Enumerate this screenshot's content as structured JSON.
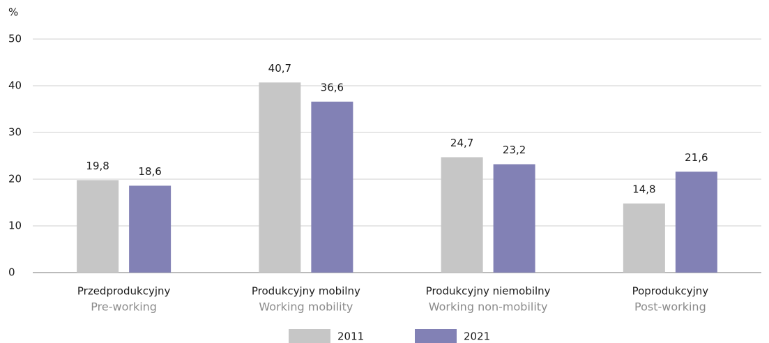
{
  "chart_data": {
    "type": "bar",
    "y_unit": "%",
    "categories": [
      "Przedprodukcyjny",
      "Produkcyjny mobilny",
      "Produkcyjny niemobilny",
      "Poprodukcyjny"
    ],
    "category_subtitles": [
      "Pre-working",
      "Working mobility",
      "Working non-mobility",
      "Post-working"
    ],
    "series": [
      {
        "name": "2011",
        "color": "#c6c6c6",
        "values": [
          19.8,
          40.7,
          24.7,
          14.8
        ],
        "value_labels": [
          "19,8",
          "40,7",
          "24,7",
          "14,8"
        ]
      },
      {
        "name": "2021",
        "color": "#8281b5",
        "values": [
          18.6,
          36.6,
          23.2,
          21.6
        ],
        "value_labels": [
          "18,6",
          "36,6",
          "23,2",
          "21,6"
        ]
      }
    ],
    "ylim": [
      0,
      50
    ],
    "yticks": [
      0,
      10,
      20,
      30,
      40,
      50
    ],
    "grid": true,
    "legend": "bottom"
  }
}
